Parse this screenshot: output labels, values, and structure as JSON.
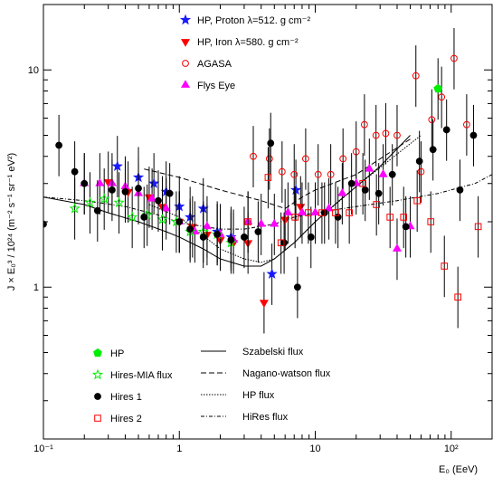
{
  "chart_data": {
    "type": "scatter",
    "xscale": "log",
    "yscale": "log",
    "xlim": [
      0.1,
      200
    ],
    "ylim": [
      0.2,
      20
    ],
    "xlabel": "E₀ (EeV)",
    "ylabel": "J × E₀³ / 10²⁴ (m⁻² s⁻¹ sr⁻¹ eV²)",
    "x_ticks": [
      {
        "v": 0.1,
        "label": "10⁻¹"
      },
      {
        "v": 1,
        "label": "1"
      },
      {
        "v": 10,
        "label": "10"
      },
      {
        "v": 100,
        "label": "10²"
      }
    ],
    "y_ticks": [
      {
        "v": 1,
        "label": "1"
      },
      {
        "v": 10,
        "label": "10"
      }
    ],
    "legend_top": [
      {
        "label": "HP, Proton    λ=512. g cm⁻²",
        "marker": "star",
        "color": "#1a1aff",
        "filled": true
      },
      {
        "label": "HP, Iron    λ=580. g cm⁻²",
        "marker": "triangle-down",
        "color": "#ff0000",
        "filled": true
      },
      {
        "label": "AGASA",
        "marker": "circle",
        "color": "#ff0000",
        "filled": false
      },
      {
        "label": "Flys Eye",
        "marker": "triangle-up",
        "color": "#ff00ff",
        "filled": true
      }
    ],
    "legend_bottom_markers": [
      {
        "label": "HP",
        "marker": "pentagon",
        "color": "#00ee00",
        "filled": true
      },
      {
        "label": "Hires-MIA flux",
        "marker": "star",
        "color": "#00ee00",
        "filled": false
      },
      {
        "label": "Hires 1",
        "marker": "circle",
        "color": "#000000",
        "filled": true
      },
      {
        "label": "Hires 2",
        "marker": "square",
        "color": "#ff0000",
        "filled": false
      }
    ],
    "legend_bottom_lines": [
      {
        "label": "Szabelski flux",
        "dash": "solid"
      },
      {
        "label": "Nagano-watson flux",
        "dash": "6,3"
      },
      {
        "label": "HP flux",
        "dash": "1.5,1.5"
      },
      {
        "label": "HiRes flux",
        "dash": "4,2,1,2"
      }
    ],
    "series": [
      {
        "name": "HP, Proton",
        "marker": "star",
        "color": "#1a1aff",
        "filled": true,
        "points": [
          [
            0.35,
            3.6
          ],
          [
            0.5,
            3.2
          ],
          [
            0.65,
            3.0
          ],
          [
            0.8,
            2.75
          ],
          [
            1.0,
            2.35
          ],
          [
            1.2,
            2.1
          ],
          [
            1.5,
            2.3
          ],
          [
            1.9,
            1.8
          ],
          [
            2.4,
            1.7
          ],
          [
            4.8,
            1.15
          ],
          [
            7.2,
            2.8
          ]
        ]
      },
      {
        "name": "HP, Iron",
        "marker": "triangle-down",
        "color": "#ff0000",
        "filled": true,
        "points": [
          [
            0.3,
            3.05
          ],
          [
            0.42,
            2.75
          ],
          [
            0.6,
            2.6
          ],
          [
            0.75,
            2.35
          ],
          [
            1.0,
            2.0
          ],
          [
            1.25,
            1.9
          ],
          [
            1.6,
            1.75
          ],
          [
            2.0,
            1.65
          ],
          [
            2.5,
            1.6
          ],
          [
            3.2,
            1.6
          ],
          [
            4.2,
            0.85
          ],
          [
            6.0,
            2.05
          ],
          [
            7.8,
            2.35
          ]
        ]
      },
      {
        "name": "AGASA",
        "marker": "circle",
        "color": "#ff0000",
        "filled": false,
        "points": [
          [
            3.5,
            4.0
          ],
          [
            4.6,
            3.9
          ],
          [
            5.7,
            3.4
          ],
          [
            7.0,
            3.3
          ],
          [
            8.5,
            3.9
          ],
          [
            10.5,
            3.3
          ],
          [
            13.0,
            3.3
          ],
          [
            16.0,
            3.9
          ],
          [
            20.0,
            4.2
          ],
          [
            23.0,
            5.6
          ],
          [
            28.0,
            5.0
          ],
          [
            33.0,
            5.1
          ],
          [
            40.0,
            5.0
          ],
          [
            55.0,
            9.4
          ],
          [
            60.0,
            3.4
          ],
          [
            72.0,
            5.9
          ],
          [
            85.0,
            7.5
          ],
          [
            105.0,
            11.3
          ],
          [
            130.0,
            5.6
          ]
        ]
      },
      {
        "name": "Flys Eye",
        "marker": "triangle-up",
        "color": "#ff00ff",
        "filled": true,
        "points": [
          [
            0.2,
            3.0
          ],
          [
            0.26,
            3.0
          ],
          [
            0.32,
            3.0
          ],
          [
            0.4,
            2.9
          ],
          [
            0.5,
            2.7
          ],
          [
            0.63,
            2.55
          ],
          [
            0.8,
            2.3
          ],
          [
            1.0,
            2.0
          ],
          [
            1.3,
            1.8
          ],
          [
            1.6,
            1.9
          ],
          [
            2.0,
            1.75
          ],
          [
            2.5,
            1.65
          ],
          [
            3.2,
            2.0
          ],
          [
            4.0,
            1.95
          ],
          [
            5.0,
            1.95
          ],
          [
            6.3,
            2.2
          ],
          [
            8.0,
            2.2
          ],
          [
            10.0,
            2.2
          ],
          [
            12.6,
            2.3
          ],
          [
            15.8,
            2.7
          ],
          [
            20.0,
            3.0
          ],
          [
            25.0,
            3.5
          ],
          [
            31.6,
            3.3
          ],
          [
            40.0,
            1.5
          ],
          [
            50.0,
            1.9
          ]
        ]
      },
      {
        "name": "HP",
        "marker": "pentagon",
        "color": "#00ee00",
        "filled": true,
        "points": [
          [
            80.0,
            8.2
          ]
        ]
      },
      {
        "name": "Hires-MIA flux",
        "marker": "star",
        "color": "#00ee00",
        "filled": false,
        "points": [
          [
            0.17,
            2.3
          ],
          [
            0.22,
            2.45
          ],
          [
            0.28,
            2.55
          ],
          [
            0.36,
            2.45
          ],
          [
            0.45,
            2.1
          ],
          [
            0.58,
            2.15
          ],
          [
            0.75,
            2.05
          ],
          [
            0.95,
            2.0
          ],
          [
            1.2,
            1.8
          ],
          [
            1.5,
            1.8
          ],
          [
            1.9,
            1.75
          ],
          [
            2.4,
            1.6
          ]
        ]
      },
      {
        "name": "Hires 1",
        "marker": "circle",
        "color": "#000000",
        "filled": true,
        "points": [
          [
            0.1,
            1.95
          ],
          [
            0.13,
            4.5
          ],
          [
            0.17,
            3.4
          ],
          [
            0.2,
            3.0
          ],
          [
            0.25,
            2.25
          ],
          [
            0.32,
            2.8
          ],
          [
            0.4,
            2.75
          ],
          [
            0.5,
            2.85
          ],
          [
            0.55,
            2.1
          ],
          [
            0.7,
            2.5
          ],
          [
            0.85,
            2.7
          ],
          [
            1.0,
            2.0
          ],
          [
            1.2,
            1.85
          ],
          [
            1.5,
            1.7
          ],
          [
            1.9,
            1.75
          ],
          [
            2.4,
            1.65
          ],
          [
            3.0,
            1.7
          ],
          [
            3.8,
            1.8
          ],
          [
            4.7,
            4.6
          ],
          [
            5.9,
            1.6
          ],
          [
            7.4,
            1.0
          ],
          [
            9.3,
            1.7
          ],
          [
            11.7,
            2.2
          ],
          [
            14.7,
            2.1
          ],
          [
            18.5,
            3.0
          ],
          [
            23.3,
            2.8
          ],
          [
            29.3,
            2.7
          ],
          [
            36.9,
            3.3
          ],
          [
            46.4,
            1.9
          ],
          [
            58.4,
            3.8
          ],
          [
            73.5,
            4.3
          ],
          [
            92.5,
            5.3
          ],
          [
            116.0,
            2.8
          ],
          [
            146.0,
            5.0
          ]
        ]
      },
      {
        "name": "Hires 2",
        "marker": "square",
        "color": "#ff0000",
        "filled": false,
        "points": [
          [
            3.2,
            2.0
          ],
          [
            4.5,
            3.2
          ],
          [
            5.6,
            1.6
          ],
          [
            7.1,
            2.1
          ],
          [
            8.9,
            2.2
          ],
          [
            11.2,
            2.2
          ],
          [
            14.1,
            2.2
          ],
          [
            17.8,
            2.2
          ],
          [
            22.4,
            3.0
          ],
          [
            28.2,
            2.4
          ],
          [
            35.5,
            2.1
          ],
          [
            44.7,
            2.1
          ],
          [
            56.2,
            2.5
          ],
          [
            70.8,
            2.0
          ],
          [
            89.1,
            1.25
          ],
          [
            112.0,
            0.9
          ],
          [
            158.0,
            1.9
          ]
        ]
      }
    ],
    "curves": [
      {
        "name": "Szabelski flux",
        "dash": "solid",
        "points": [
          [
            0.1,
            2.6
          ],
          [
            0.2,
            2.4
          ],
          [
            0.3,
            2.2
          ],
          [
            0.5,
            2.0
          ],
          [
            0.8,
            1.8
          ],
          [
            1.0,
            1.7
          ],
          [
            1.5,
            1.5
          ],
          [
            2.0,
            1.35
          ],
          [
            3.0,
            1.25
          ],
          [
            4.0,
            1.25
          ],
          [
            5.0,
            1.35
          ],
          [
            7.0,
            1.6
          ],
          [
            10.0,
            2.0
          ],
          [
            15.0,
            2.5
          ],
          [
            20.0,
            2.9
          ],
          [
            30.0,
            3.6
          ],
          [
            50.0,
            5.0
          ]
        ]
      },
      {
        "name": "Nagano-watson flux",
        "dash": "6,3",
        "points": [
          [
            0.55,
            3.5
          ],
          [
            1.0,
            3.2
          ],
          [
            2.0,
            2.8
          ],
          [
            4.0,
            2.5
          ],
          [
            6.0,
            2.3
          ],
          [
            8.0,
            2.6
          ],
          [
            10.0,
            2.8
          ],
          [
            20.0,
            3.3
          ],
          [
            50.0,
            4.8
          ]
        ]
      },
      {
        "name": "HP flux",
        "dash": "1.5,1.5",
        "points": [
          [
            0.6,
            2.4
          ],
          [
            1.0,
            2.1
          ],
          [
            2.0,
            1.5
          ],
          [
            3.0,
            1.35
          ],
          [
            4.0,
            1.3
          ],
          [
            5.0,
            1.35
          ],
          [
            7.0,
            1.6
          ],
          [
            10.0,
            2.0
          ],
          [
            20.0,
            2.9
          ],
          [
            40.0,
            4.1
          ],
          [
            60.0,
            5.0
          ]
        ]
      },
      {
        "name": "HiRes flux",
        "dash": "4,2,1,2",
        "points": [
          [
            0.1,
            2.6
          ],
          [
            0.2,
            2.5
          ],
          [
            0.4,
            2.35
          ],
          [
            0.7,
            2.15
          ],
          [
            1.0,
            1.98
          ],
          [
            2.0,
            1.85
          ],
          [
            3.0,
            1.85
          ],
          [
            5.0,
            1.95
          ],
          [
            7.0,
            2.1
          ],
          [
            10.0,
            2.2
          ],
          [
            20.0,
            2.35
          ],
          [
            40.0,
            2.5
          ],
          [
            80.0,
            2.7
          ],
          [
            150.0,
            3.0
          ],
          [
            200.0,
            3.3
          ]
        ]
      }
    ]
  }
}
